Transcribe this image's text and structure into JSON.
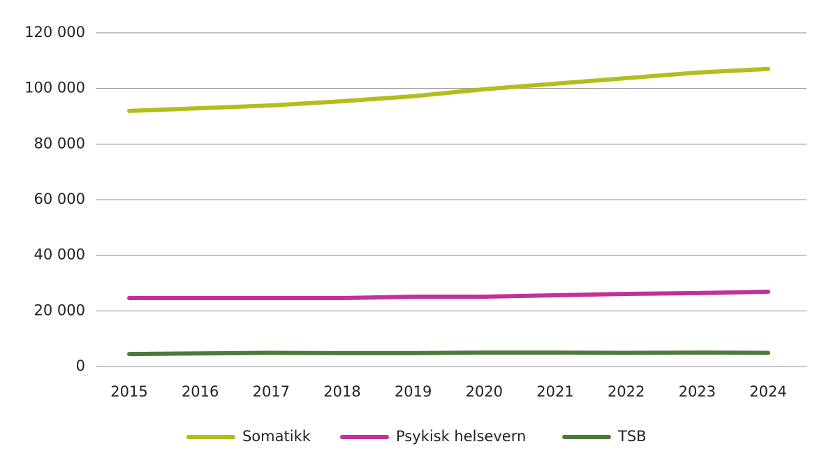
{
  "chart_data": {
    "type": "line",
    "categories": [
      "2015",
      "2016",
      "2017",
      "2018",
      "2019",
      "2020",
      "2021",
      "2022",
      "2023",
      "2024"
    ],
    "series": [
      {
        "name": "Somatikk",
        "color": "#b3bd1d",
        "values": [
          91900,
          92900,
          93900,
          95400,
          97200,
          99700,
          101700,
          103700,
          105700,
          107000
        ]
      },
      {
        "name": "Psykisk helsevern",
        "color": "#c4309a",
        "values": [
          24600,
          24600,
          24600,
          24600,
          25100,
          25100,
          25600,
          26100,
          26400,
          26900
        ]
      },
      {
        "name": "TSB",
        "color": "#4b7a3b",
        "values": [
          4500,
          4700,
          4900,
          4800,
          4800,
          5000,
          5000,
          4900,
          5000,
          4900
        ]
      }
    ],
    "ylim": [
      0,
      120000
    ],
    "yticks": [
      0,
      {
        "value": 20000,
        "label": "20 000"
      },
      {
        "value": 40000,
        "label": "40 000"
      },
      {
        "value": 60000,
        "label": "60 000"
      },
      {
        "value": 80000,
        "label": "80 000"
      },
      {
        "value": 100000,
        "label": "100 000"
      },
      {
        "value": 120000,
        "label": "120 000"
      }
    ],
    "grid": true,
    "legend": "bottom"
  }
}
